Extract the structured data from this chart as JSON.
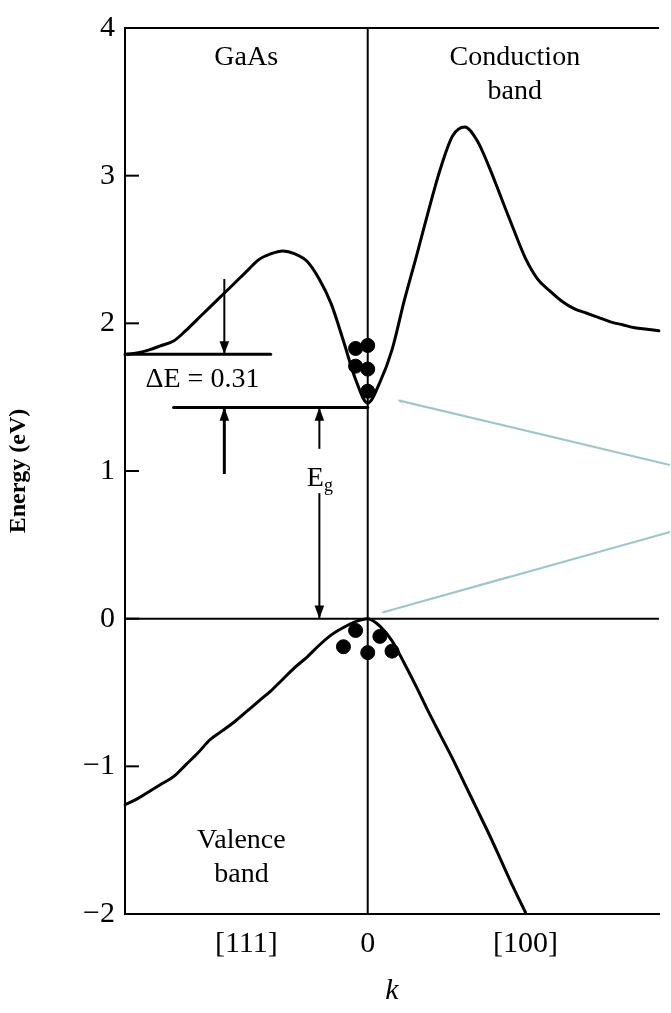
{
  "chart_data": {
    "type": "line",
    "xlabel": "k",
    "ylabel": "Energy (eV)",
    "categories": [
      null,
      null,
      null,
      null,
      null,
      null,
      null,
      null,
      null,
      null,
      "[111]",
      null,
      null,
      null,
      null,
      null,
      null,
      null,
      null,
      null,
      "0",
      null,
      null,
      null,
      null,
      null,
      null,
      null,
      null,
      null,
      null,
      null,
      null,
      "[100]",
      null,
      null,
      null,
      null,
      null,
      null,
      null,
      null,
      null,
      null,
      null
    ],
    "ylim": [
      -2,
      4
    ],
    "yticks": [
      -2,
      -1,
      0,
      1,
      2,
      3,
      4
    ],
    "grid": false,
    "legend": false,
    "marker": "none",
    "line_style": "solid",
    "series": [
      {
        "color": "#000000",
        "values": [
          1.79,
          1.8,
          1.82,
          1.85,
          1.88,
          1.95,
          2.03,
          2.11,
          2.19,
          2.27,
          2.35,
          2.43,
          2.47,
          2.49,
          2.47,
          2.42,
          2.3,
          2.13,
          1.88,
          1.62,
          1.46,
          1.6,
          1.82,
          2.15,
          2.45,
          2.76,
          3.05,
          3.27,
          3.33,
          3.24,
          3.06,
          2.85,
          2.64,
          2.44,
          2.3,
          2.22,
          2.15,
          2.1,
          2.07,
          2.04,
          2.01,
          1.99,
          1.97,
          1.96,
          1.95
        ]
      },
      {
        "color": "#000000",
        "values": [
          -1.26,
          -1.22,
          -1.17,
          -1.12,
          -1.07,
          -0.99,
          -0.91,
          -0.82,
          -0.76,
          -0.7,
          -0.63,
          -0.56,
          -0.49,
          -0.41,
          -0.33,
          -0.26,
          -0.18,
          -0.11,
          -0.06,
          -0.02,
          0,
          -0.05,
          -0.15,
          -0.3,
          -0.46,
          -0.63,
          -0.79,
          -0.95,
          -1.12,
          -1.29,
          -1.46,
          -1.64,
          -1.82,
          -1.99,
          null,
          null,
          null,
          null,
          null,
          null,
          null,
          null,
          null,
          null,
          null
        ]
      },
      {
        "color": "#000000",
        "values": [
          1.79,
          1.79,
          1.79,
          1.79,
          1.79,
          1.79,
          1.79,
          1.79,
          1.79,
          1.79,
          1.79,
          1.79,
          1.79,
          null,
          null,
          null,
          null,
          null,
          null,
          null,
          null,
          null,
          null,
          null,
          null,
          null,
          null,
          null,
          null,
          null,
          null,
          null,
          null,
          null,
          null,
          null,
          null,
          null,
          null,
          null,
          null,
          null,
          null,
          null,
          null
        ]
      },
      {
        "color": "#000000",
        "values": [
          null,
          null,
          null,
          null,
          1.43,
          1.43,
          1.43,
          1.43,
          1.43,
          1.43,
          1.43,
          1.43,
          1.43,
          1.43,
          1.43,
          1.43,
          1.43,
          1.43,
          1.43,
          1.43,
          1.43,
          null,
          null,
          null,
          null,
          null,
          null,
          null,
          null,
          null,
          null,
          null,
          null,
          null,
          null,
          null,
          null,
          null,
          null,
          null,
          null,
          null,
          null,
          null,
          null
        ]
      },
      {
        "type": "scatter",
        "color": "#000000",
        "marker": "circle",
        "values": [
          null,
          null,
          null,
          null,
          null,
          null,
          null,
          null,
          null,
          null,
          null,
          null,
          null,
          null,
          null,
          null,
          null,
          null,
          null,
          1.83,
          1.85,
          null,
          null,
          null,
          null,
          null,
          null,
          null,
          null,
          null,
          null,
          null,
          null,
          null,
          null,
          null,
          null,
          null,
          null,
          null,
          null,
          null,
          null,
          null,
          null
        ]
      },
      {
        "type": "scatter",
        "color": "#000000",
        "marker": "circle",
        "values": [
          null,
          null,
          null,
          null,
          null,
          null,
          null,
          null,
          null,
          null,
          null,
          null,
          null,
          null,
          null,
          null,
          null,
          null,
          null,
          1.71,
          1.69,
          null,
          null,
          null,
          null,
          null,
          null,
          null,
          null,
          null,
          null,
          null,
          null,
          null,
          null,
          null,
          null,
          null,
          null,
          null,
          null,
          null,
          null,
          null,
          null
        ]
      },
      {
        "type": "scatter",
        "color": "#000000",
        "marker": "circle",
        "values": [
          null,
          null,
          null,
          null,
          null,
          null,
          null,
          null,
          null,
          null,
          null,
          null,
          null,
          null,
          null,
          null,
          null,
          null,
          null,
          null,
          1.54,
          null,
          null,
          null,
          null,
          null,
          null,
          null,
          null,
          null,
          null,
          null,
          null,
          null,
          null,
          null,
          null,
          null,
          null,
          null,
          null,
          null,
          null,
          null,
          null
        ]
      },
      {
        "type": "scatter",
        "color": "#000000",
        "marker": "circle",
        "values": [
          null,
          null,
          null,
          null,
          null,
          null,
          null,
          null,
          null,
          null,
          null,
          null,
          null,
          null,
          null,
          null,
          null,
          null,
          -0.19,
          -0.08,
          -0.23,
          -0.12,
          -0.22,
          null,
          null,
          null,
          null,
          null,
          null,
          null,
          null,
          null,
          null,
          null,
          null,
          null,
          null,
          null,
          null,
          null,
          null,
          null,
          null,
          null,
          null
        ]
      }
    ],
    "ref_lines": [
      {
        "axis": "y",
        "value": 0,
        "color": "#000000"
      },
      {
        "axis": "x",
        "value": "0",
        "color": "#000000"
      }
    ],
    "annotations": [
      "GaAs",
      "Conduction\nband",
      "ΔE = 0.31",
      {
        "text": "E$_{g}$",
        "y": 0
      },
      "Valence\nband"
    ]
  }
}
